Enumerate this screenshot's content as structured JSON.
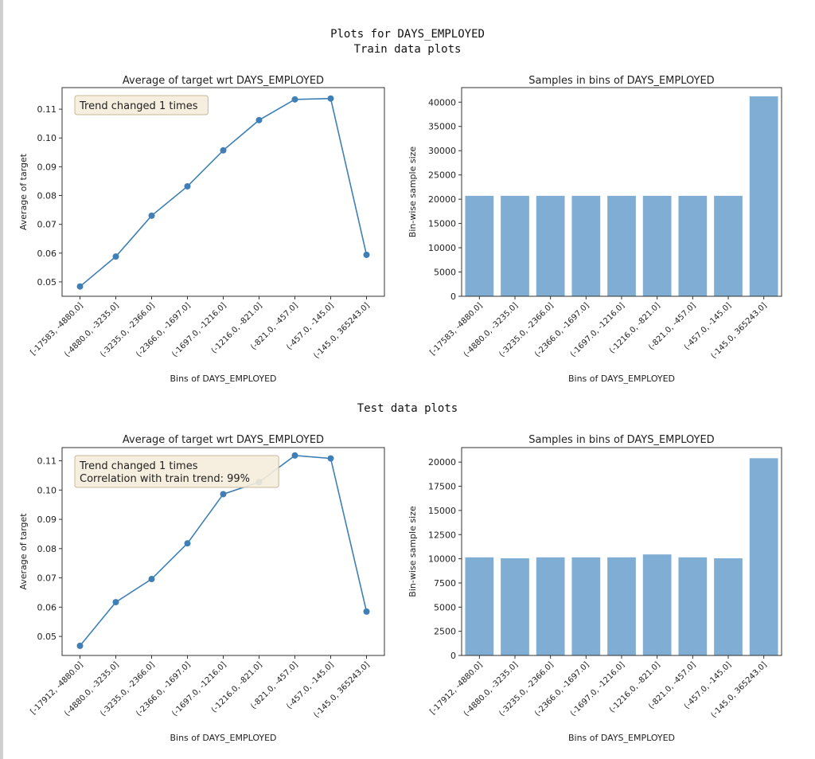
{
  "header": {
    "title": "Plots for DAYS_EMPLOYED",
    "train_label": "Train data plots",
    "test_label": "Test data plots"
  },
  "colors": {
    "line": "#3f7fb5",
    "bar": "#7fadd3",
    "annot_bg": "#f5ecdc",
    "annot_border": "#c8b89a"
  },
  "chart_data": [
    {
      "type": "line",
      "title": "Average of target wrt DAYS_EMPLOYED",
      "xlabel": "Bins of DAYS_EMPLOYED",
      "ylabel": "Average of target",
      "categories": [
        "[-17583, -4880.0]",
        "(-4880.0, -3235.0]",
        "(-3235.0, -2366.0]",
        "(-2366.0, -1697.0]",
        "(-1697.0, -1216.0]",
        "(-1216.0, -821.0]",
        "(-821.0, -457.0]",
        "(-457.0, -145.0]",
        "(-145.0, 365243.0]"
      ],
      "values": [
        0.0484,
        0.0588,
        0.073,
        0.0832,
        0.0957,
        0.1062,
        0.1134,
        0.1137,
        0.0594
      ],
      "ylim": [
        0.045,
        0.1175
      ],
      "yticks": [
        "0.05",
        "0.06",
        "0.07",
        "0.08",
        "0.09",
        "0.10",
        "0.11"
      ],
      "annotation": [
        "Trend changed 1 times"
      ]
    },
    {
      "type": "bar",
      "title": "Samples in bins of DAYS_EMPLOYED",
      "xlabel": "Bins of DAYS_EMPLOYED",
      "ylabel": "Bin-wise sample size",
      "categories": [
        "[-17583, -4880.0]",
        "(-4880.0, -3235.0]",
        "(-3235.0, -2366.0]",
        "(-2366.0, -1697.0]",
        "(-1697.0, -1216.0]",
        "(-1216.0, -821.0]",
        "(-821.0, -457.0]",
        "(-457.0, -145.0]",
        "(-145.0, 365243.0]"
      ],
      "values": [
        20700,
        20700,
        20700,
        20700,
        20700,
        20700,
        20700,
        20700,
        41200
      ],
      "ylim": [
        0,
        43000
      ],
      "yticks": [
        "0",
        "5000",
        "10000",
        "15000",
        "20000",
        "25000",
        "30000",
        "35000",
        "40000"
      ]
    },
    {
      "type": "line",
      "title": "Average of target wrt DAYS_EMPLOYED",
      "xlabel": "Bins of DAYS_EMPLOYED",
      "ylabel": "Average of target",
      "categories": [
        "[-17912, -4880.0]",
        "(-4880.0, -3235.0]",
        "(-3235.0, -2366.0]",
        "(-2366.0, -1697.0]",
        "(-1697.0, -1216.0]",
        "(-1216.0, -821.0]",
        "(-821.0, -457.0]",
        "(-457.0, -145.0]",
        "(-145.0, 365243.0]"
      ],
      "values": [
        0.0468,
        0.0617,
        0.0696,
        0.0818,
        0.0986,
        0.1027,
        0.1118,
        0.1108,
        0.0585
      ],
      "ylim": [
        0.0435,
        0.1145
      ],
      "yticks": [
        "0.05",
        "0.06",
        "0.07",
        "0.08",
        "0.09",
        "0.10",
        "0.11"
      ],
      "annotation": [
        "Trend changed 1 times",
        "Correlation with train trend: 99%"
      ]
    },
    {
      "type": "bar",
      "title": "Samples in bins of DAYS_EMPLOYED",
      "xlabel": "Bins of DAYS_EMPLOYED",
      "ylabel": "Bin-wise sample size",
      "categories": [
        "[-17912, -4880.0]",
        "(-4880.0, -3235.0]",
        "(-3235.0, -2366.0]",
        "(-2366.0, -1697.0]",
        "(-1697.0, -1216.0]",
        "(-1216.0, -821.0]",
        "(-821.0, -457.0]",
        "(-457.0, -145.0]",
        "(-145.0, 365243.0]"
      ],
      "values": [
        10150,
        10050,
        10150,
        10150,
        10150,
        10450,
        10150,
        10050,
        20400
      ],
      "ylim": [
        0,
        21500
      ],
      "yticks": [
        "0",
        "2500",
        "5000",
        "7500",
        "10000",
        "12500",
        "15000",
        "17500",
        "20000"
      ]
    }
  ]
}
